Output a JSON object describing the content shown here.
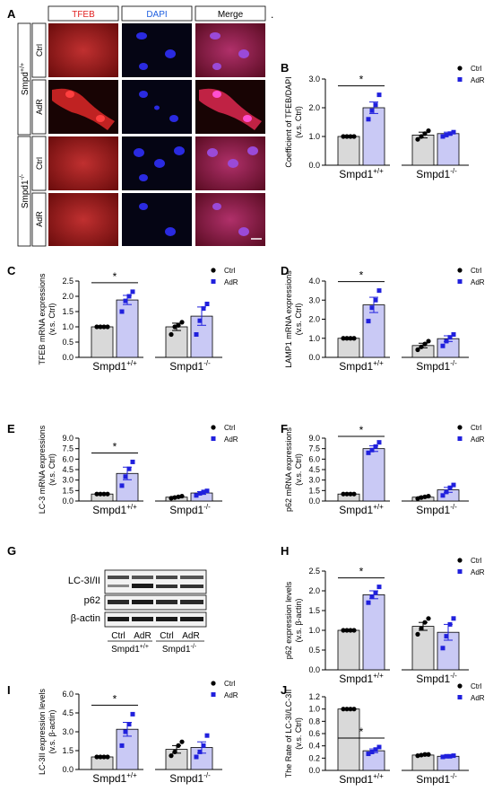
{
  "colors": {
    "ctrl_fill": "#d9d9d9",
    "adr_fill": "#c9c9f5",
    "adr_stroke": "#2020dd",
    "ctrl_stroke": "#000000",
    "tfeb_label": "#e02020",
    "dapi_label": "#2060e0"
  },
  "panel_a": {
    "letter": "A",
    "channel_labels": [
      "TFEB",
      "DAPI",
      "Merge"
    ],
    "dot": ".",
    "genotype_top": "Smpd",
    "genotype_top_sup": "+/+",
    "genotype_bottom": "Smpd1",
    "genotype_bottom_sup": "-/-",
    "row_labels": [
      "Ctrl",
      "AdR",
      "Ctrl",
      "AdR"
    ]
  },
  "panel_g": {
    "letter": "G",
    "blot_labels": [
      "LC-3I/II",
      "p62",
      "β-actin"
    ],
    "lane_labels": [
      "Ctrl",
      "AdR",
      "Ctrl",
      "AdR"
    ],
    "group_labels": [
      "Smpd1",
      "Smpd1"
    ],
    "group_sups": [
      "+/+",
      "-/-"
    ]
  },
  "chart_data": [
    {
      "letter": "B",
      "type": "bar",
      "ylabel": "Coefficient of TFEB/DAPI",
      "ylabel2": "(v.s. Ctrl)",
      "ylim": [
        0,
        3
      ],
      "yticks": [
        "0.0",
        "1.0",
        "2.0",
        "3.0"
      ],
      "groups": [
        "Smpd1",
        "Smpd1"
      ],
      "group_sups": [
        "+/+",
        "-/-"
      ],
      "series": [
        {
          "name": "Ctrl",
          "values": [
            1.0,
            1.05
          ],
          "errors": [
            0.0,
            0.1
          ],
          "points": [
            [
              1.0,
              1.0,
              1.0,
              1.0
            ],
            [
              0.9,
              1.0,
              1.1,
              1.2
            ]
          ]
        },
        {
          "name": "AdR",
          "values": [
            2.0,
            1.1
          ],
          "errors": [
            0.2,
            0.05
          ],
          "points": [
            [
              1.6,
              1.9,
              2.1,
              2.45
            ],
            [
              1.0,
              1.05,
              1.1,
              1.15
            ]
          ]
        }
      ],
      "significance": "*"
    },
    {
      "letter": "C",
      "type": "bar",
      "ylabel": "TFEB mRNA expressions",
      "ylabel2": "(v.s. Ctrl)",
      "ylim": [
        0,
        2.5
      ],
      "yticks": [
        "0.0",
        "0.5",
        "1.0",
        "1.5",
        "2.0",
        "2.5"
      ],
      "groups": [
        "Smpd1",
        "Smpd1"
      ],
      "group_sups": [
        "+/+",
        "-/-"
      ],
      "series": [
        {
          "name": "Ctrl",
          "values": [
            1.0,
            1.0
          ],
          "errors": [
            0.0,
            0.12
          ],
          "points": [
            [
              1.0,
              1.0,
              1.0,
              1.0
            ],
            [
              0.75,
              1.0,
              1.05,
              1.15
            ]
          ]
        },
        {
          "name": "AdR",
          "values": [
            1.88,
            1.35
          ],
          "errors": [
            0.15,
            0.3
          ],
          "points": [
            [
              1.5,
              1.85,
              2.0,
              2.15
            ],
            [
              0.75,
              1.2,
              1.6,
              1.75
            ]
          ]
        }
      ],
      "significance": "*"
    },
    {
      "letter": "D",
      "type": "bar",
      "ylabel": "LAMP1 mRNA expressions",
      "ylabel2": "(v.s. Ctrl)",
      "ylim": [
        0,
        4
      ],
      "yticks": [
        "0.0",
        "1.0",
        "2.0",
        "3.0",
        "4.0"
      ],
      "groups": [
        "Smpd1",
        "Smpd1"
      ],
      "group_sups": [
        "+/+",
        "-/-"
      ],
      "series": [
        {
          "name": "Ctrl",
          "values": [
            1.0,
            0.62
          ],
          "errors": [
            0.0,
            0.12
          ],
          "points": [
            [
              1.0,
              1.0,
              1.0,
              1.0
            ],
            [
              0.4,
              0.55,
              0.7,
              0.85
            ]
          ]
        },
        {
          "name": "AdR",
          "values": [
            2.75,
            0.98
          ],
          "errors": [
            0.4,
            0.15
          ],
          "points": [
            [
              1.9,
              2.6,
              3.0,
              3.5
            ],
            [
              0.6,
              0.85,
              1.05,
              1.2
            ]
          ]
        }
      ],
      "significance": "*"
    },
    {
      "letter": "E",
      "type": "bar",
      "ylabel": "LC-3 mRNA expressions",
      "ylabel2": "(v.s. Ctrl)",
      "ylim": [
        0,
        9
      ],
      "yticks": [
        "0.0",
        "1.5",
        "3.0",
        "4.5",
        "6.0",
        "7.5",
        "9.0"
      ],
      "groups": [
        "Smpd1",
        "Smpd1"
      ],
      "group_sups": [
        "+/+",
        "-/-"
      ],
      "series": [
        {
          "name": "Ctrl",
          "values": [
            1.0,
            0.55
          ],
          "errors": [
            0.0,
            0.1
          ],
          "points": [
            [
              1.0,
              1.0,
              1.0,
              1.0
            ],
            [
              0.4,
              0.5,
              0.6,
              0.7
            ]
          ]
        },
        {
          "name": "AdR",
          "values": [
            3.95,
            1.15
          ],
          "errors": [
            0.9,
            0.2
          ],
          "points": [
            [
              2.2,
              3.5,
              4.6,
              5.6
            ],
            [
              0.8,
              1.1,
              1.3,
              1.45
            ]
          ]
        }
      ],
      "significance": "*"
    },
    {
      "letter": "F",
      "type": "bar",
      "ylabel": "p62 mRNA expressions",
      "ylabel2": "(v.s. Ctrl)",
      "ylim": [
        0,
        9
      ],
      "yticks": [
        "0.0",
        "1.5",
        "3.0",
        "4.5",
        "6.0",
        "7.5",
        "9.0"
      ],
      "groups": [
        "Smpd1",
        "Smpd1"
      ],
      "group_sups": [
        "+/+",
        "-/-"
      ],
      "series": [
        {
          "name": "Ctrl",
          "values": [
            1.0,
            0.55
          ],
          "errors": [
            0.0,
            0.1
          ],
          "points": [
            [
              1.0,
              1.0,
              1.0,
              1.0
            ],
            [
              0.35,
              0.5,
              0.6,
              0.7
            ]
          ]
        },
        {
          "name": "AdR",
          "values": [
            7.5,
            1.6
          ],
          "errors": [
            0.4,
            0.35
          ],
          "points": [
            [
              6.9,
              7.3,
              7.8,
              8.4
            ],
            [
              0.8,
              1.3,
              1.9,
              2.3
            ]
          ]
        }
      ],
      "significance": "*"
    },
    {
      "letter": "H",
      "type": "bar",
      "ylabel": "p62 expression levels",
      "ylabel2": "(v.s. β-actin)",
      "ylim": [
        0,
        2.5
      ],
      "yticks": [
        "0.0",
        "0.5",
        "1.0",
        "1.5",
        "2.0",
        "2.5"
      ],
      "groups": [
        "Smpd1",
        "Smpd1"
      ],
      "group_sups": [
        "+/+",
        "-/-"
      ],
      "series": [
        {
          "name": "Ctrl",
          "values": [
            1.0,
            1.1
          ],
          "errors": [
            0.0,
            0.1
          ],
          "points": [
            [
              1.0,
              1.0,
              1.0,
              1.0
            ],
            [
              0.9,
              1.05,
              1.2,
              1.3
            ]
          ]
        },
        {
          "name": "AdR",
          "values": [
            1.9,
            0.95
          ],
          "errors": [
            0.1,
            0.2
          ],
          "points": [
            [
              1.7,
              1.85,
              1.95,
              2.1
            ],
            [
              0.55,
              0.85,
              1.15,
              1.3
            ]
          ]
        }
      ],
      "significance": "*"
    },
    {
      "letter": "I",
      "type": "bar",
      "ylabel": "LC-3II expression levels",
      "ylabel2": "(v.s. β-actin)",
      "ylim": [
        0,
        6
      ],
      "yticks": [
        "0.0",
        "1.5",
        "3.0",
        "4.5",
        "6.0"
      ],
      "groups": [
        "Smpd1",
        "Smpd1"
      ],
      "group_sups": [
        "+/+",
        "-/-"
      ],
      "series": [
        {
          "name": "Ctrl",
          "values": [
            1.0,
            1.6
          ],
          "errors": [
            0.0,
            0.3
          ],
          "points": [
            [
              1.0,
              1.0,
              1.0,
              1.0
            ],
            [
              1.1,
              1.4,
              1.9,
              2.2
            ]
          ]
        },
        {
          "name": "AdR",
          "values": [
            3.2,
            1.75
          ],
          "errors": [
            0.55,
            0.45
          ],
          "points": [
            [
              1.9,
              3.0,
              3.6,
              4.4
            ],
            [
              1.0,
              1.4,
              1.9,
              2.7
            ]
          ]
        }
      ],
      "significance": "*"
    },
    {
      "letter": "J",
      "type": "bar",
      "ylabel": "The Rate of LC-3I/LC-3II",
      "ylabel2": "(v.s. Ctrl)",
      "ylim": [
        0,
        1.2
      ],
      "yticks": [
        "0.0",
        "0.2",
        "0.4",
        "0.6",
        "0.8",
        "1.0",
        "1.2"
      ],
      "groups": [
        "Smpd1",
        "Smpd1"
      ],
      "group_sups": [
        "+/+",
        "-/-"
      ],
      "series": [
        {
          "name": "Ctrl",
          "values": [
            1.0,
            0.25
          ],
          "errors": [
            0.0,
            0.01
          ],
          "points": [
            [
              1.0,
              1.0,
              1.0,
              1.0
            ],
            [
              0.24,
              0.25,
              0.26,
              0.26
            ]
          ]
        },
        {
          "name": "AdR",
          "values": [
            0.32,
            0.23
          ],
          "errors": [
            0.03,
            0.01
          ],
          "points": [
            [
              0.27,
              0.3,
              0.34,
              0.38
            ],
            [
              0.22,
              0.23,
              0.23,
              0.24
            ]
          ]
        }
      ],
      "significance": "*"
    }
  ]
}
